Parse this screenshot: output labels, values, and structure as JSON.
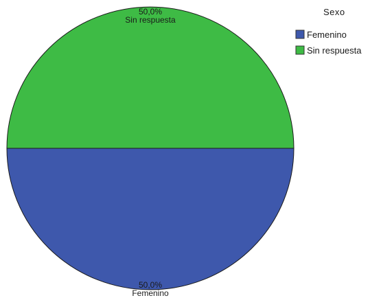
{
  "chart_data": {
    "type": "pie",
    "legend_title": "Sexo",
    "legend_position": "top-right",
    "slices": [
      {
        "label": "Femenino",
        "value": 50.0,
        "value_label": "50,0%",
        "color": "#3e58ac"
      },
      {
        "label": "Sin respuesta",
        "value": 50.0,
        "value_label": "50,0%",
        "color": "#3ebb45"
      }
    ]
  }
}
